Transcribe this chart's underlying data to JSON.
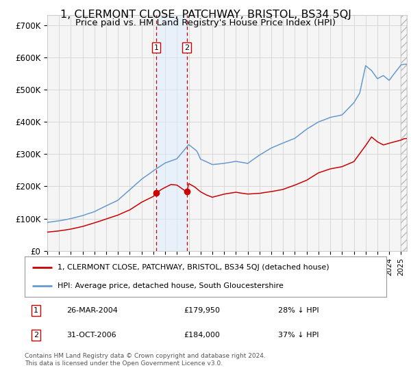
{
  "title": "1, CLERMONT CLOSE, PATCHWAY, BRISTOL, BS34 5QJ",
  "subtitle": "Price paid vs. HM Land Registry's House Price Index (HPI)",
  "title_fontsize": 11.5,
  "subtitle_fontsize": 9.5,
  "ylabel_ticks": [
    "£0",
    "£100K",
    "£200K",
    "£300K",
    "£400K",
    "£500K",
    "£600K",
    "£700K"
  ],
  "ytick_values": [
    0,
    100000,
    200000,
    300000,
    400000,
    500000,
    600000,
    700000
  ],
  "ylim": [
    0,
    730000
  ],
  "xlim_start": 1995.0,
  "xlim_end": 2025.5,
  "red_line_label": "1, CLERMONT CLOSE, PATCHWAY, BRISTOL, BS34 5QJ (detached house)",
  "blue_line_label": "HPI: Average price, detached house, South Gloucestershire",
  "sale1_date": 2004.23,
  "sale1_price": 179950,
  "sale1_label": "1",
  "sale1_text": "26-MAR-2004",
  "sale1_price_text": "£179,950",
  "sale1_hpi_text": "28% ↓ HPI",
  "sale2_date": 2006.83,
  "sale2_price": 184000,
  "sale2_label": "2",
  "sale2_text": "31-OCT-2006",
  "sale2_price_text": "£184,000",
  "sale2_hpi_text": "37% ↓ HPI",
  "bg_color": "#ffffff",
  "plot_bg_color": "#f5f5f5",
  "grid_color": "#cccccc",
  "red_line_color": "#cc0000",
  "blue_line_color": "#6699cc",
  "shade_color": "#ddeeff",
  "dashed_line_color": "#cc0000",
  "sale_dot_color": "#cc0000",
  "footnote": "Contains HM Land Registry data © Crown copyright and database right 2024.\nThis data is licensed under the Open Government Licence v3.0.",
  "hatch_color": "#bbbbbb",
  "label_box_color": "#cc0000",
  "hpi_keys_x": [
    1995,
    1996,
    1997,
    1998,
    1999,
    2000,
    2001,
    2002,
    2003,
    2003.5,
    2004,
    2004.5,
    2005,
    2006,
    2007,
    2007.7,
    2008,
    2009,
    2009.5,
    2010,
    2011,
    2012,
    2013,
    2014,
    2015,
    2016,
    2017,
    2018,
    2019,
    2020,
    2021,
    2021.5,
    2022,
    2022.5,
    2023,
    2023.5,
    2024,
    2025,
    2025.3
  ],
  "hpi_keys_y": [
    88000,
    93000,
    100000,
    110000,
    122000,
    140000,
    158000,
    190000,
    222000,
    235000,
    248000,
    260000,
    272000,
    285000,
    330000,
    310000,
    285000,
    268000,
    270000,
    272000,
    278000,
    272000,
    298000,
    320000,
    335000,
    350000,
    378000,
    400000,
    415000,
    422000,
    460000,
    490000,
    575000,
    560000,
    535000,
    545000,
    530000,
    578000,
    580000
  ],
  "red_keys_x": [
    1995,
    1996,
    1997,
    1998,
    1999,
    2000,
    2001,
    2002,
    2003,
    2004,
    2004.23,
    2004.7,
    2005,
    2005.5,
    2006,
    2006.83,
    2007,
    2007.5,
    2008,
    2008.5,
    2009,
    2010,
    2011,
    2012,
    2013,
    2014,
    2015,
    2016,
    2017,
    2018,
    2019,
    2020,
    2021,
    2022,
    2022.5,
    2023,
    2023.5,
    2024,
    2025,
    2025.3
  ],
  "red_keys_y": [
    58000,
    62000,
    68000,
    76000,
    87000,
    100000,
    112000,
    128000,
    152000,
    170000,
    179950,
    192000,
    198000,
    207000,
    205000,
    184000,
    210000,
    200000,
    185000,
    175000,
    168000,
    178000,
    184000,
    178000,
    180000,
    185000,
    192000,
    205000,
    220000,
    243000,
    255000,
    262000,
    278000,
    328000,
    355000,
    340000,
    330000,
    335000,
    345000,
    350000
  ]
}
